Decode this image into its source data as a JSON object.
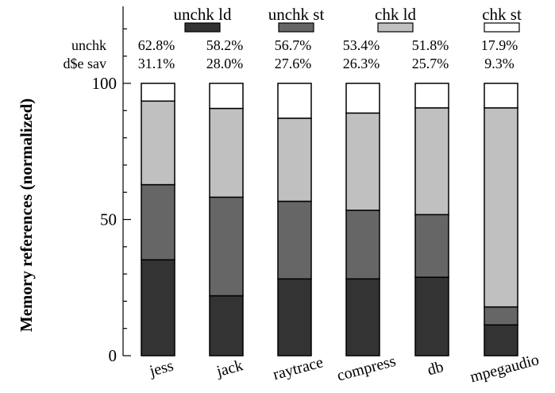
{
  "chart_data": {
    "type": "bar",
    "stacked": true,
    "ylabel": "Memory references (normalized)",
    "xlabel": "",
    "ylim": [
      0,
      100
    ],
    "yticks": [
      0,
      50,
      100
    ],
    "categories": [
      "jess",
      "jack",
      "raytrace",
      "compress",
      "db",
      "mpegaudio"
    ],
    "series": [
      {
        "name": "unchk ld",
        "color": "#333333",
        "values": [
          35.2,
          22.0,
          28.2,
          28.2,
          28.8,
          11.3
        ]
      },
      {
        "name": "unchk st",
        "color": "#666666",
        "values": [
          27.6,
          36.2,
          28.5,
          25.2,
          23.0,
          6.6
        ]
      },
      {
        "name": "chk ld",
        "color": "#c0c0c0",
        "values": [
          30.7,
          32.6,
          30.5,
          35.7,
          39.2,
          73.1
        ]
      },
      {
        "name": "chk st",
        "color": "#ffffff",
        "values": [
          6.5,
          9.2,
          12.8,
          10.9,
          9.0,
          9.0
        ]
      }
    ],
    "annotations": {
      "rows": [
        {
          "label": "unchk",
          "values": [
            "62.8%",
            "58.2%",
            "56.7%",
            "53.4%",
            "51.8%",
            "17.9%"
          ]
        },
        {
          "label": "d$e sav",
          "values": [
            "31.1%",
            "28.0%",
            "27.6%",
            "26.3%",
            "25.7%",
            "9.3%"
          ]
        }
      ]
    },
    "legend_position": "top"
  }
}
